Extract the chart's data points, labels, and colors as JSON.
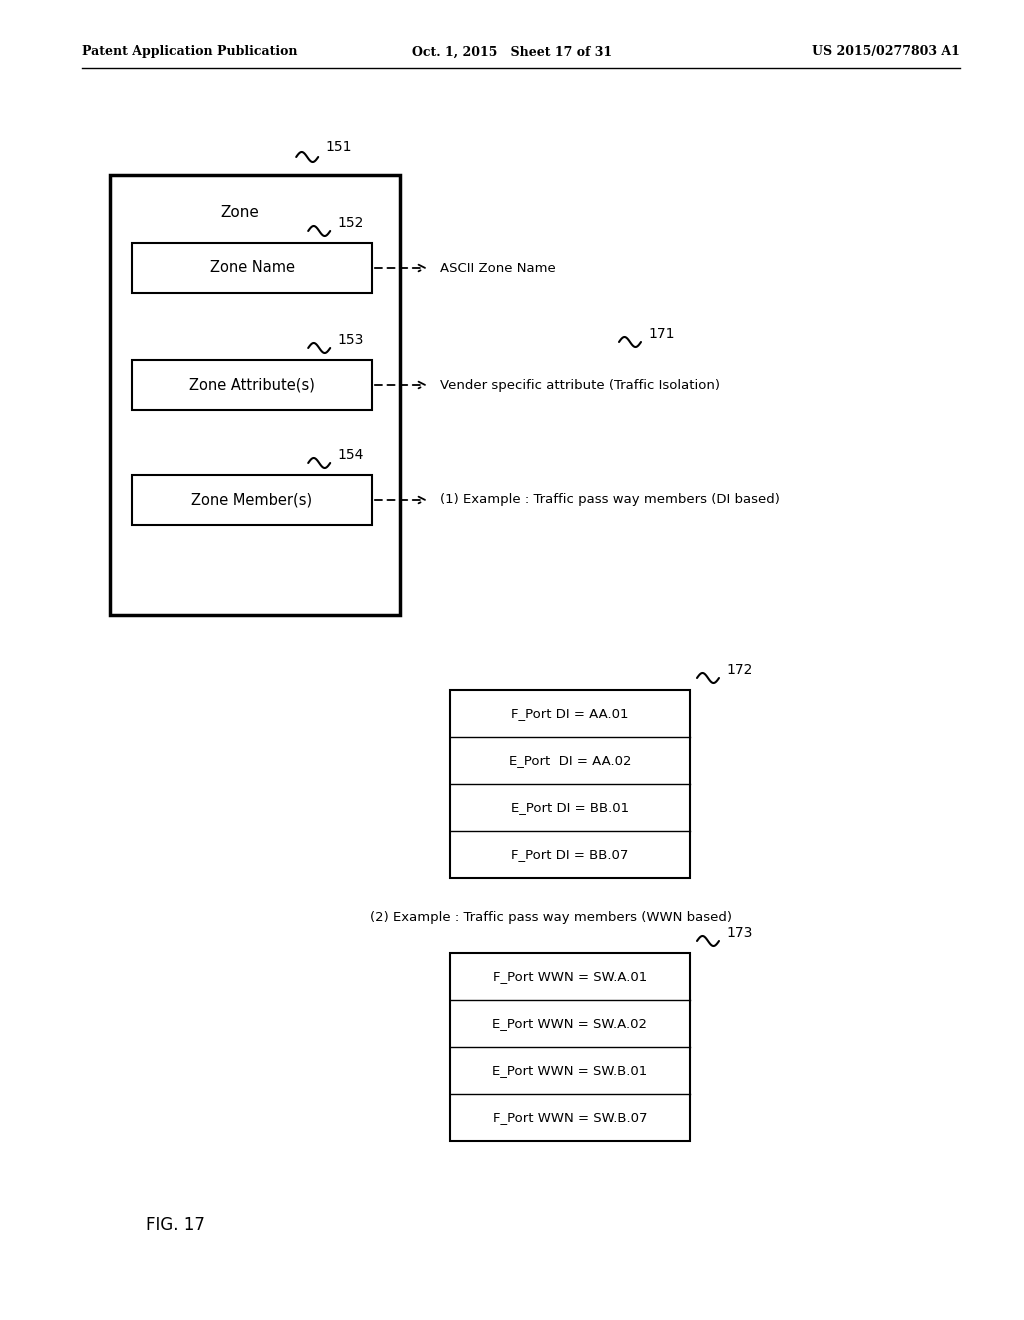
{
  "bg_color": "#ffffff",
  "header_left": "Patent Application Publication",
  "header_mid": "Oct. 1, 2015   Sheet 17 of 31",
  "header_right": "US 2015/0277803 A1",
  "fig_label": "FIG. 17",
  "outer_box_label": "Zone",
  "outer_ref": "151",
  "inner_boxes": [
    {
      "label": "Zone Name",
      "ref": "152"
    },
    {
      "label": "Zone Attribute(s)",
      "ref": "153"
    },
    {
      "label": "Zone Member(s)",
      "ref": "154"
    }
  ],
  "arrow_texts": [
    "ASCII Zone Name",
    "Vender specific attribute (Traffic Isolation)",
    "(1) Example : Traffic pass way members (DI based)"
  ],
  "ref_171": "171",
  "di_box_ref": "172",
  "di_rows": [
    "F_Port DI = AA.01",
    "E_Port  DI = AA.02",
    "E_Port DI = BB.01",
    "F_Port DI = BB.07"
  ],
  "wwn_label_text": "(2) Example : Traffic pass way members (WWN based)",
  "wwn_box_ref": "173",
  "wwn_rows": [
    "F_Port WWN = SW.A.01",
    "E_Port WWN = SW.A.02",
    "E_Port WWN = SW.B.01",
    "F_Port WWN = SW.B.07"
  ]
}
